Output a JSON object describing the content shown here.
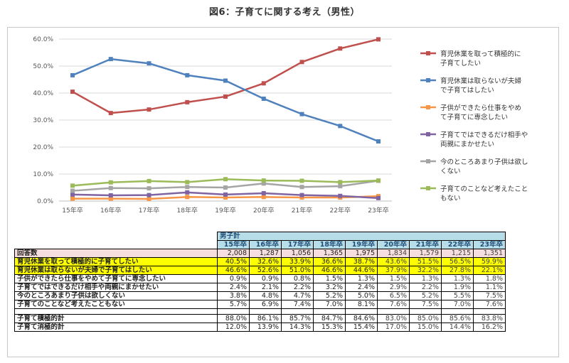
{
  "title": "図6：子育てに関する考え（男性）",
  "chart_data": {
    "type": "line",
    "x": [
      "15年卒",
      "16年卒",
      "17年卒",
      "18年卒",
      "19年卒",
      "20年卒",
      "21年卒",
      "22年卒",
      "23年卒"
    ],
    "ylim": [
      0,
      60
    ],
    "yticks": [
      "0.0%",
      "10.0%",
      "20.0%",
      "30.0%",
      "40.0%",
      "50.0%",
      "60.0%"
    ],
    "grid": true,
    "legend": "right",
    "series": [
      {
        "name": "育児休業を取って積極的に子育てしたい",
        "color": "#c0504d",
        "values": [
          40.5,
          32.6,
          33.9,
          36.6,
          38.7,
          43.6,
          51.5,
          56.5,
          59.9
        ]
      },
      {
        "name": "育児休業は取らないが夫婦で子育てはしたい",
        "color": "#4f81bd",
        "values": [
          46.6,
          52.6,
          51.0,
          46.6,
          44.6,
          37.9,
          32.2,
          27.8,
          22.1
        ]
      },
      {
        "name": "子供ができたら仕事をやめて子育てに専念したい",
        "color": "#f79646",
        "values": [
          0.9,
          0.9,
          0.8,
          1.5,
          1.3,
          1.5,
          1.3,
          1.3,
          1.8
        ]
      },
      {
        "name": "子育てではできるだけ相手や両親にまかせたい",
        "color": "#8064a2",
        "values": [
          2.4,
          2.1,
          2.2,
          3.2,
          2.4,
          2.9,
          2.2,
          1.9,
          1.1
        ]
      },
      {
        "name": "今のところあまり子供は欲しくない",
        "color": "#a5a5a5",
        "values": [
          3.8,
          4.8,
          4.7,
          5.2,
          5.0,
          6.5,
          5.2,
          5.5,
          7.5
        ]
      },
      {
        "name": "子育てのことなど考えたこともない",
        "color": "#9bbb59",
        "values": [
          5.7,
          6.9,
          7.4,
          7.0,
          8.1,
          7.6,
          7.5,
          7.0,
          7.6
        ]
      }
    ],
    "legend_lines": [
      [
        "育児休業を取って積極的に",
        "子育てしたい"
      ],
      [
        "育児休業は取らないが夫婦",
        "で子育てはしたい"
      ],
      [
        "子供ができたら仕事をやめ",
        "て子育てに専念したい"
      ],
      [
        "子育てではできるだけ相手や",
        "両親にまかせたい"
      ],
      [
        "今のところあまり子供は欲し",
        "くない"
      ],
      [
        "子育てのことなど考えたこと",
        "もない"
      ]
    ]
  },
  "table": {
    "group_header": "男子計",
    "years": [
      "15年卒",
      "16年卒",
      "17年卒",
      "18年卒",
      "19年卒",
      "20年卒",
      "21年卒",
      "22年卒",
      "23年卒"
    ],
    "rows": [
      {
        "label": "回答数",
        "style": "pink",
        "values": [
          "2,008",
          "1,287",
          "1,056",
          "1,365",
          "1,975",
          "1,834",
          "1,579",
          "1,215",
          "1,351"
        ]
      },
      {
        "label": "育児休業を取って積極的に子育てしたい",
        "style": "yellow",
        "values": [
          "40.5%",
          "32.6%",
          "33.9%",
          "36.6%",
          "38.7%",
          "43.6%",
          "51.5%",
          "56.5%",
          "59.9%"
        ]
      },
      {
        "label": "育児休業は取らないが夫婦で子育てはしたい",
        "style": "yellow",
        "values": [
          "46.6%",
          "52.6%",
          "51.0%",
          "46.6%",
          "44.6%",
          "37.9%",
          "32.2%",
          "27.8%",
          "22.1%"
        ]
      },
      {
        "label": "子供ができたら仕事をやめて子育てに専念したい",
        "style": "white",
        "values": [
          "0.9%",
          "0.9%",
          "0.8%",
          "1.5%",
          "1.3%",
          "1.5%",
          "1.3%",
          "1.3%",
          "1.8%"
        ]
      },
      {
        "label": "子育てではできるだけ相手や両親にまかせたい",
        "style": "white",
        "values": [
          "2.4%",
          "2.1%",
          "2.2%",
          "3.2%",
          "2.4%",
          "2.9%",
          "2.2%",
          "1.9%",
          "1.1%"
        ]
      },
      {
        "label": "今のところあまり子供は欲しくない",
        "style": "white",
        "values": [
          "3.8%",
          "4.8%",
          "4.7%",
          "5.2%",
          "5.0%",
          "6.5%",
          "5.2%",
          "5.5%",
          "7.5%"
        ]
      },
      {
        "label": "子育てのことなど考えたこともない",
        "style": "white",
        "values": [
          "5.7%",
          "6.9%",
          "7.4%",
          "7.0%",
          "8.1%",
          "7.6%",
          "7.5%",
          "7.0%",
          "7.6%"
        ]
      }
    ],
    "summary_rows": [
      {
        "label": "子育て積極的計",
        "values": [
          "88.0%",
          "86.1%",
          "85.7%",
          "84.7%",
          "84.6%",
          "83.0%",
          "85.0%",
          "85.6%",
          "83.8%"
        ]
      },
      {
        "label": "子育て消極的計",
        "values": [
          "12.0%",
          "13.9%",
          "14.3%",
          "15.3%",
          "15.4%",
          "17.0%",
          "15.0%",
          "14.4%",
          "16.2%"
        ]
      }
    ]
  }
}
